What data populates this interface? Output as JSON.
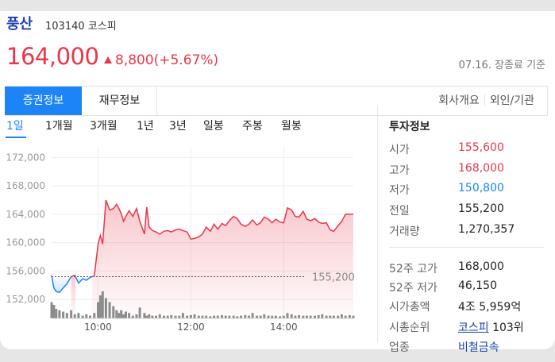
{
  "stock": {
    "name": "풍산",
    "code": "103140",
    "market": "코스피",
    "price": "164,000",
    "change": "8,800(+5.67%)",
    "as_of": "07.16. 장종료 기준"
  },
  "tabs": {
    "active": "증권정보",
    "second": "재무정보",
    "company": "회사개요",
    "foreign": "외인/기관"
  },
  "periods": [
    "1일",
    "1개월",
    "3개월",
    "1년",
    "3년",
    "일봉",
    "주봉",
    "월봉"
  ],
  "colors": {
    "up": "#e8374a",
    "down": "#1c84f7",
    "accent": "#1c84f7"
  },
  "info": {
    "title": "투자정보",
    "open_label": "시가",
    "open": "155,600",
    "high_label": "고가",
    "high": "168,000",
    "low_label": "저가",
    "low": "150,800",
    "prev_label": "전일",
    "prev": "155,200",
    "volume_label": "거래량",
    "volume": "1,270,357",
    "w52_high_label": "52주 고가",
    "w52_high": "168,000",
    "w52_low_label": "52주 저가",
    "w52_low": "46,150",
    "mcap_label": "시가총액",
    "mcap": "4조 5,959억",
    "rank_label": "시총순위",
    "rank_market": "코스피",
    "rank_num": "103위",
    "sector_label": "업종",
    "sector": "비철금속"
  },
  "chart_data": {
    "type": "line",
    "y_ticks": [
      "172,000",
      "168,000",
      "164,000",
      "160,000",
      "156,000",
      "152,000"
    ],
    "x_ticks": [
      "10:00",
      "12:00",
      "14:00"
    ],
    "ylim": [
      150000,
      173500
    ],
    "xlim": [
      9.0,
      15.5
    ],
    "prev_close": 155200,
    "prev_close_label": "155,200",
    "x": [
      9.0,
      9.05,
      9.1,
      9.17,
      9.25,
      9.33,
      9.42,
      9.5,
      9.58,
      9.67,
      9.75,
      9.83,
      9.92,
      10.0,
      10.05,
      10.1,
      10.17,
      10.25,
      10.33,
      10.4,
      10.45,
      10.5,
      10.55,
      10.6,
      10.67,
      10.75,
      10.83,
      10.9,
      11.0,
      11.05,
      11.1,
      11.17,
      11.25,
      11.33,
      11.42,
      11.5,
      11.58,
      11.67,
      11.75,
      11.83,
      11.92,
      12.0,
      12.08,
      12.17,
      12.25,
      12.33,
      12.42,
      12.5,
      12.58,
      12.67,
      12.75,
      12.83,
      12.92,
      13.0,
      13.08,
      13.17,
      13.25,
      13.33,
      13.42,
      13.5,
      13.58,
      13.67,
      13.75,
      13.83,
      13.92,
      14.0,
      14.08,
      14.17,
      14.25,
      14.33,
      14.42,
      14.5,
      14.58,
      14.67,
      14.75,
      14.83,
      14.92,
      15.0,
      15.08,
      15.17,
      15.25,
      15.33,
      15.42,
      15.5
    ],
    "y": [
      155400,
      153600,
      153100,
      153000,
      153600,
      154200,
      155200,
      155400,
      154300,
      154900,
      154700,
      155100,
      155300,
      159800,
      161000,
      159800,
      166000,
      164600,
      164800,
      165400,
      164800,
      164100,
      163000,
      163700,
      164500,
      163700,
      164800,
      163000,
      161200,
      165000,
      162200,
      161700,
      161500,
      161200,
      161600,
      161700,
      161500,
      161800,
      161900,
      161700,
      161500,
      160500,
      160600,
      160800,
      161200,
      162200,
      161600,
      162600,
      161900,
      162700,
      162400,
      163100,
      163700,
      163400,
      162600,
      162300,
      162600,
      163200,
      162500,
      162800,
      163600,
      163300,
      162800,
      163300,
      162900,
      162800,
      164900,
      164600,
      163700,
      163600,
      164400,
      163300,
      163100,
      163400,
      162900,
      162700,
      162800,
      161800,
      161600,
      162400,
      163000,
      164000,
      164000,
      164000
    ],
    "volume": [
      0.6,
      0.5,
      0.35,
      0.3,
      0.25,
      0.2,
      0.3,
      0.15,
      0.2,
      0.1,
      0.15,
      0.1,
      0.2,
      0.6,
      0.85,
      1.0,
      0.75,
      0.6,
      0.45,
      0.3,
      0.2,
      0.3,
      0.15,
      0.25,
      0.2,
      0.1,
      0.15,
      0.4,
      0.2,
      0.1,
      0.15,
      0.1,
      0.1,
      0.15,
      0.1,
      0.1,
      0.12,
      0.1,
      0.1,
      0.2,
      0.1,
      0.12,
      0.15,
      0.1,
      0.1,
      0.1,
      0.08,
      0.1,
      0.1,
      0.12,
      0.1,
      0.1,
      0.1,
      0.08,
      0.1,
      0.12,
      0.1,
      0.2,
      0.1,
      0.1,
      0.15,
      0.1,
      0.1,
      0.1,
      0.08,
      0.1,
      0.2,
      0.15,
      0.1,
      0.12,
      0.1,
      0.1,
      0.1,
      0.1,
      0.12,
      0.15,
      0.1,
      0.1,
      0.1,
      0.1,
      0.15,
      0.1,
      0.12,
      0.1
    ]
  }
}
